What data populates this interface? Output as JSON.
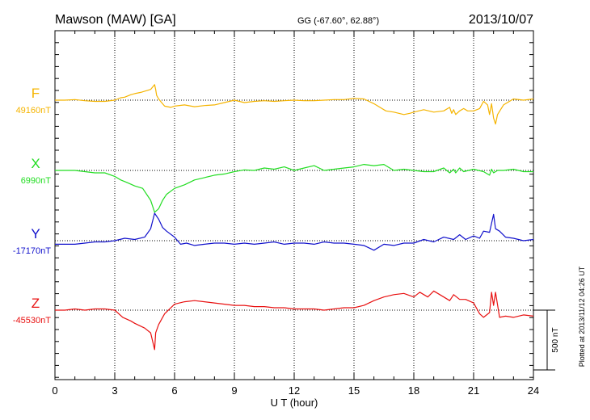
{
  "header": {
    "station": "Mawson (MAW)  [GA]",
    "coords": "GG (-67.60°,  62.88°)",
    "date": "2013/10/07"
  },
  "side_note": "Plotted at 2013/11/12 04:26 UT",
  "chart_data": {
    "type": "line",
    "xlabel": "U T (hour)",
    "xlim": [
      0,
      24
    ],
    "x_ticks": [
      0,
      3,
      6,
      9,
      12,
      15,
      18,
      21,
      24
    ],
    "grid": true,
    "scale_bar": {
      "value_nT": 500,
      "label": "500 nT"
    },
    "colors": {
      "F": "#f5b400",
      "X": "#22dd22",
      "Y": "#1111cc",
      "Z": "#e81010"
    },
    "series": [
      {
        "name": "F",
        "baseline": "49160nT",
        "x": [
          0,
          0.5,
          1,
          1.5,
          2,
          2.5,
          3,
          3.3,
          3.5,
          3.8,
          4,
          4.3,
          4.5,
          4.8,
          5,
          5.05,
          5.1,
          5.2,
          5.3,
          5.5,
          5.8,
          6,
          6.5,
          7,
          7.5,
          8,
          8.5,
          9,
          9.5,
          10,
          10.5,
          11,
          11.5,
          12,
          12.5,
          13,
          13.5,
          14,
          14.5,
          15,
          15.5,
          16,
          16.3,
          16.6,
          17,
          17.5,
          17.8,
          18,
          18.5,
          19,
          19.5,
          19.8,
          19.9,
          20,
          20.1,
          20.3,
          20.5,
          20.7,
          21,
          21.3,
          21.5,
          21.7,
          21.8,
          21.9,
          22,
          22.1,
          22.2,
          22.5,
          23,
          23.5,
          24
        ],
        "y": [
          0,
          0,
          5,
          -5,
          -10,
          -10,
          0,
          20,
          25,
          45,
          55,
          65,
          75,
          90,
          130,
          90,
          40,
          10,
          -10,
          -50,
          -60,
          -50,
          -40,
          -55,
          -45,
          -40,
          -20,
          0,
          -20,
          -10,
          -5,
          -10,
          -5,
          0,
          -5,
          -5,
          0,
          5,
          5,
          15,
          10,
          -30,
          -60,
          -90,
          -100,
          -120,
          -110,
          -100,
          -80,
          -100,
          -90,
          -60,
          -110,
          -80,
          -120,
          -90,
          -70,
          -90,
          -90,
          -70,
          -10,
          -40,
          -120,
          -30,
          -150,
          -200,
          -120,
          -40,
          10,
          0,
          10
        ]
      },
      {
        "name": "X",
        "baseline": "6990nT",
        "x": [
          0,
          0.5,
          1,
          1.5,
          2,
          2.5,
          3,
          3.3,
          3.6,
          4,
          4.4,
          4.8,
          5,
          5.2,
          5.4,
          5.6,
          6,
          6.5,
          7,
          7.5,
          8,
          8.5,
          9,
          9.5,
          10,
          10.5,
          11,
          11.5,
          12,
          12.5,
          13,
          13.5,
          14,
          14.5,
          15,
          15.5,
          16,
          16.5,
          17,
          17.5,
          18,
          18.5,
          19,
          19.5,
          19.8,
          20,
          20.1,
          20.3,
          20.5,
          21,
          21.5,
          21.8,
          21.9,
          22,
          22.2,
          22.5,
          23,
          23.5,
          24
        ],
        "y": [
          0,
          0,
          0,
          -10,
          -20,
          -20,
          -50,
          -80,
          -100,
          -130,
          -150,
          -250,
          -350,
          -320,
          -250,
          -200,
          -150,
          -120,
          -80,
          -60,
          -40,
          -30,
          -10,
          5,
          0,
          20,
          10,
          30,
          0,
          20,
          40,
          0,
          10,
          20,
          30,
          50,
          40,
          50,
          0,
          10,
          0,
          -10,
          -10,
          20,
          -20,
          10,
          -20,
          20,
          -10,
          10,
          -10,
          -40,
          10,
          -20,
          0,
          0,
          10,
          -10,
          -10
        ]
      },
      {
        "name": "Y",
        "baseline": "-17170nT",
        "x": [
          0,
          0.5,
          1,
          1.5,
          2,
          2.5,
          3,
          3.5,
          4,
          4.5,
          4.8,
          5,
          5.2,
          5.4,
          5.6,
          6,
          6.3,
          6.6,
          7,
          7.5,
          8,
          8.5,
          9,
          9.5,
          10,
          10.5,
          11,
          11.5,
          12,
          12.5,
          13,
          13.5,
          14,
          14.5,
          15,
          15.5,
          16,
          16.5,
          17,
          17.5,
          18,
          18.5,
          19,
          19.5,
          20,
          20.3,
          20.6,
          21,
          21.3,
          21.5,
          21.8,
          22,
          22.1,
          22.3,
          22.6,
          23,
          23.5,
          24
        ],
        "y": [
          -30,
          -30,
          -30,
          -20,
          -10,
          -10,
          0,
          20,
          10,
          30,
          100,
          230,
          180,
          110,
          80,
          30,
          -30,
          -20,
          -40,
          -30,
          -20,
          -20,
          -30,
          -20,
          -30,
          -20,
          -10,
          -30,
          -20,
          -20,
          -30,
          -10,
          -20,
          -20,
          -30,
          -40,
          -80,
          -30,
          -40,
          -20,
          -20,
          10,
          -10,
          30,
          10,
          50,
          10,
          40,
          20,
          80,
          70,
          220,
          100,
          80,
          30,
          20,
          0,
          10
        ]
      },
      {
        "name": "Z",
        "baseline": "-45530nT",
        "x": [
          0,
          0.5,
          1,
          1.5,
          2,
          2.5,
          3,
          3.4,
          3.8,
          4,
          4.5,
          4.8,
          5,
          5.05,
          5.2,
          5.5,
          6,
          6.5,
          7,
          7.5,
          8,
          8.5,
          9,
          9.5,
          10,
          10.5,
          11,
          11.5,
          12,
          12.5,
          13,
          13.5,
          14,
          14.5,
          15,
          15.5,
          16,
          16.5,
          17,
          17.5,
          18,
          18.3,
          18.7,
          19,
          19.5,
          19.8,
          20,
          20.3,
          20.6,
          21,
          21.3,
          21.5,
          21.8,
          21.9,
          22,
          22.1,
          22.3,
          22.6,
          23,
          23.5,
          24
        ],
        "y": [
          0,
          0,
          10,
          0,
          10,
          10,
          0,
          -60,
          -90,
          -110,
          -150,
          -190,
          -330,
          -190,
          -120,
          -30,
          50,
          70,
          80,
          70,
          60,
          50,
          40,
          40,
          30,
          30,
          20,
          20,
          10,
          10,
          10,
          0,
          10,
          20,
          20,
          40,
          80,
          110,
          130,
          140,
          110,
          150,
          110,
          160,
          110,
          80,
          130,
          90,
          90,
          60,
          -30,
          -60,
          -20,
          150,
          40,
          150,
          -60,
          -50,
          -60,
          -40,
          -50
        ]
      }
    ]
  }
}
